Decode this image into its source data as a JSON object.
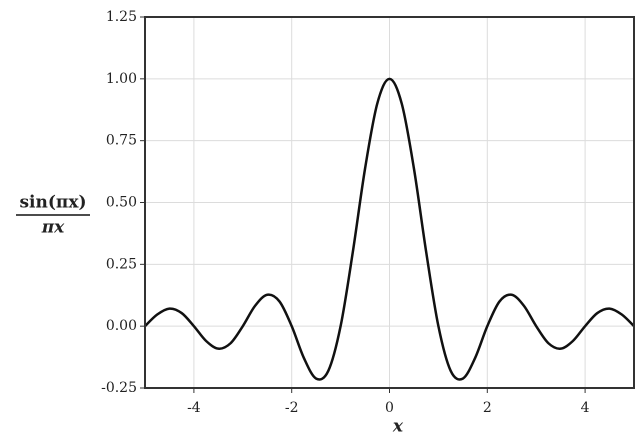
{
  "chart_data": {
    "type": "line",
    "xlabel": "x",
    "ylabel_numerator": "sin(πx)",
    "ylabel_denominator": "πx",
    "x": [
      -5,
      -4.75,
      -4.5,
      -4.25,
      -4,
      -3.75,
      -3.5,
      -3.25,
      -3,
      -2.75,
      -2.5,
      -2.25,
      -2,
      -1.75,
      -1.5,
      -1.25,
      -1,
      -0.75,
      -0.5,
      -0.25,
      0,
      0.25,
      0.5,
      0.75,
      1,
      1.25,
      1.5,
      1.75,
      2,
      2.25,
      2.5,
      2.75,
      3,
      3.25,
      3.5,
      3.75,
      4,
      4.25,
      4.5,
      4.75,
      5
    ],
    "series": [
      {
        "color": "#111111",
        "values": [
          0,
          0.047,
          0.071,
          0.053,
          0,
          -0.06,
          -0.091,
          -0.069,
          0,
          0.082,
          0.127,
          0.1,
          0,
          -0.129,
          -0.212,
          -0.18,
          0,
          0.3,
          0.637,
          0.9,
          1,
          0.9,
          0.637,
          0.3,
          0,
          -0.18,
          -0.212,
          -0.129,
          0,
          0.1,
          0.127,
          0.082,
          0,
          -0.069,
          -0.091,
          -0.06,
          0,
          0.053,
          0.071,
          0.047,
          0
        ]
      }
    ],
    "xlim": [
      -5,
      5
    ],
    "ylim": [
      -0.25,
      1.25
    ],
    "xticks": [
      -4,
      -2,
      0,
      2,
      4
    ],
    "yticks": [
      {
        "value": -0.25,
        "label": "-0.25"
      },
      {
        "value": 0,
        "label": "0.00"
      },
      {
        "value": 0.25,
        "label": "0.25"
      },
      {
        "value": 0.5,
        "label": "0.50"
      },
      {
        "value": 0.75,
        "label": "0.75"
      },
      {
        "value": 1,
        "label": "1.00"
      },
      {
        "value": 1.25,
        "label": "1.25"
      }
    ],
    "grid": true
  }
}
